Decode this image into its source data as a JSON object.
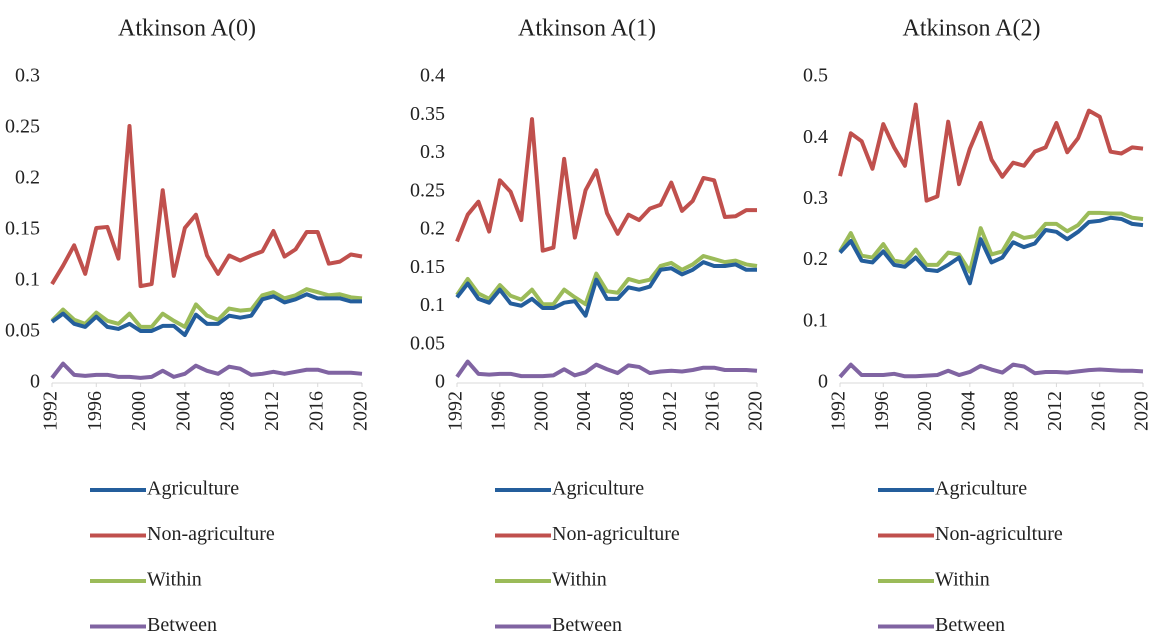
{
  "chart_data": [
    {
      "type": "line",
      "title": "Atkinson A(0)",
      "x": [
        1992,
        1993,
        1994,
        1995,
        1996,
        1997,
        1998,
        1999,
        2000,
        2001,
        2002,
        2003,
        2004,
        2005,
        2006,
        2007,
        2008,
        2009,
        2010,
        2011,
        2012,
        2013,
        2014,
        2015,
        2016,
        2017,
        2018,
        2019,
        2020
      ],
      "xlim": [
        1992,
        2020
      ],
      "xticks": [
        1992,
        1996,
        2000,
        2004,
        2008,
        2012,
        2016,
        2020
      ],
      "ylim": [
        0,
        0.3
      ],
      "yticks": [
        0,
        0.05,
        0.1,
        0.15,
        0.2,
        0.25,
        0.3
      ],
      "series": [
        {
          "name": "Agriculture",
          "color": "#245e9c",
          "values": [
            0.06,
            0.068,
            0.058,
            0.055,
            0.065,
            0.055,
            0.053,
            0.058,
            0.051,
            0.051,
            0.056,
            0.056,
            0.047,
            0.067,
            0.058,
            0.058,
            0.066,
            0.064,
            0.066,
            0.082,
            0.085,
            0.079,
            0.082,
            0.087,
            0.083,
            0.083,
            0.083,
            0.08,
            0.08
          ]
        },
        {
          "name": "Non-agriculture",
          "color": "#c0504d",
          "values": [
            0.097,
            0.115,
            0.135,
            0.107,
            0.152,
            0.153,
            0.122,
            0.252,
            0.095,
            0.097,
            0.189,
            0.105,
            0.152,
            0.165,
            0.125,
            0.107,
            0.125,
            0.12,
            0.125,
            0.129,
            0.149,
            0.124,
            0.131,
            0.148,
            0.148,
            0.117,
            0.119,
            0.126,
            0.124
          ]
        },
        {
          "name": "Within",
          "color": "#9bbb59",
          "values": [
            0.061,
            0.072,
            0.062,
            0.058,
            0.069,
            0.061,
            0.058,
            0.068,
            0.055,
            0.055,
            0.068,
            0.061,
            0.055,
            0.077,
            0.066,
            0.062,
            0.073,
            0.071,
            0.072,
            0.086,
            0.089,
            0.083,
            0.086,
            0.092,
            0.089,
            0.086,
            0.087,
            0.084,
            0.083
          ]
        },
        {
          "name": "Between",
          "color": "#8064a2",
          "values": [
            0.005,
            0.019,
            0.008,
            0.007,
            0.008,
            0.008,
            0.006,
            0.006,
            0.005,
            0.006,
            0.012,
            0.006,
            0.009,
            0.017,
            0.012,
            0.009,
            0.016,
            0.014,
            0.008,
            0.009,
            0.011,
            0.009,
            0.011,
            0.013,
            0.013,
            0.01,
            0.01,
            0.01,
            0.009
          ]
        }
      ]
    },
    {
      "type": "line",
      "title": "Atkinson A(1)",
      "x": [
        1992,
        1993,
        1994,
        1995,
        1996,
        1997,
        1998,
        1999,
        2000,
        2001,
        2002,
        2003,
        2004,
        2005,
        2006,
        2007,
        2008,
        2009,
        2010,
        2011,
        2012,
        2013,
        2014,
        2015,
        2016,
        2017,
        2018,
        2019,
        2020
      ],
      "xlim": [
        1992,
        2020
      ],
      "xticks": [
        1992,
        1996,
        2000,
        2004,
        2008,
        2012,
        2016,
        2020
      ],
      "ylim": [
        0,
        0.4
      ],
      "yticks": [
        0,
        0.05,
        0.1,
        0.15,
        0.2,
        0.25,
        0.3,
        0.35,
        0.4
      ],
      "series": [
        {
          "name": "Agriculture",
          "color": "#245e9c",
          "values": [
            0.112,
            0.13,
            0.11,
            0.105,
            0.122,
            0.104,
            0.101,
            0.11,
            0.098,
            0.098,
            0.105,
            0.107,
            0.088,
            0.135,
            0.11,
            0.11,
            0.125,
            0.122,
            0.126,
            0.148,
            0.15,
            0.142,
            0.148,
            0.158,
            0.153,
            0.153,
            0.155,
            0.148,
            0.148
          ]
        },
        {
          "name": "Non-agriculture",
          "color": "#c0504d",
          "values": [
            0.185,
            0.22,
            0.237,
            0.198,
            0.265,
            0.25,
            0.213,
            0.345,
            0.173,
            0.177,
            0.293,
            0.19,
            0.252,
            0.278,
            0.222,
            0.195,
            0.22,
            0.213,
            0.228,
            0.233,
            0.262,
            0.225,
            0.238,
            0.268,
            0.265,
            0.217,
            0.218,
            0.226,
            0.226
          ]
        },
        {
          "name": "Within",
          "color": "#9bbb59",
          "values": [
            0.115,
            0.136,
            0.117,
            0.11,
            0.128,
            0.114,
            0.109,
            0.122,
            0.103,
            0.103,
            0.122,
            0.112,
            0.103,
            0.143,
            0.12,
            0.118,
            0.136,
            0.132,
            0.135,
            0.153,
            0.157,
            0.148,
            0.155,
            0.166,
            0.162,
            0.158,
            0.16,
            0.155,
            0.153
          ]
        },
        {
          "name": "Between",
          "color": "#8064a2",
          "values": [
            0.008,
            0.028,
            0.012,
            0.011,
            0.012,
            0.012,
            0.009,
            0.009,
            0.009,
            0.01,
            0.018,
            0.01,
            0.014,
            0.024,
            0.018,
            0.013,
            0.023,
            0.021,
            0.013,
            0.015,
            0.016,
            0.015,
            0.017,
            0.02,
            0.02,
            0.017,
            0.017,
            0.017,
            0.016
          ]
        }
      ]
    },
    {
      "type": "line",
      "title": "Atkinson A(2)",
      "x": [
        1992,
        1993,
        1994,
        1995,
        1996,
        1997,
        1998,
        1999,
        2000,
        2001,
        2002,
        2003,
        2004,
        2005,
        2006,
        2007,
        2008,
        2009,
        2010,
        2011,
        2012,
        2013,
        2014,
        2015,
        2016,
        2017,
        2018,
        2019,
        2020
      ],
      "xlim": [
        1992,
        2020
      ],
      "xticks": [
        1992,
        1996,
        2000,
        2004,
        2008,
        2012,
        2016,
        2020
      ],
      "ylim": [
        0,
        0.5
      ],
      "yticks": [
        0,
        0.1,
        0.2,
        0.3,
        0.4,
        0.5
      ],
      "series": [
        {
          "name": "Agriculture",
          "color": "#245e9c",
          "values": [
            0.213,
            0.232,
            0.2,
            0.197,
            0.215,
            0.193,
            0.19,
            0.205,
            0.185,
            0.183,
            0.193,
            0.205,
            0.163,
            0.235,
            0.197,
            0.205,
            0.23,
            0.222,
            0.228,
            0.25,
            0.247,
            0.235,
            0.247,
            0.263,
            0.265,
            0.27,
            0.268,
            0.26,
            0.258
          ]
        },
        {
          "name": "Non-agriculture",
          "color": "#c0504d",
          "values": [
            0.338,
            0.408,
            0.395,
            0.35,
            0.423,
            0.385,
            0.355,
            0.455,
            0.298,
            0.305,
            0.427,
            0.325,
            0.383,
            0.425,
            0.365,
            0.337,
            0.36,
            0.355,
            0.378,
            0.385,
            0.425,
            0.377,
            0.4,
            0.445,
            0.435,
            0.378,
            0.375,
            0.385,
            0.383
          ]
        },
        {
          "name": "Within",
          "color": "#9bbb59",
          "values": [
            0.215,
            0.245,
            0.208,
            0.205,
            0.227,
            0.2,
            0.197,
            0.218,
            0.193,
            0.193,
            0.213,
            0.21,
            0.182,
            0.253,
            0.21,
            0.215,
            0.245,
            0.237,
            0.24,
            0.26,
            0.26,
            0.248,
            0.258,
            0.278,
            0.278,
            0.277,
            0.277,
            0.27,
            0.268
          ]
        },
        {
          "name": "Between",
          "color": "#8064a2",
          "values": [
            0.01,
            0.03,
            0.013,
            0.013,
            0.013,
            0.015,
            0.011,
            0.011,
            0.012,
            0.013,
            0.02,
            0.013,
            0.018,
            0.028,
            0.022,
            0.017,
            0.03,
            0.027,
            0.016,
            0.018,
            0.018,
            0.017,
            0.019,
            0.021,
            0.022,
            0.021,
            0.02,
            0.02,
            0.019
          ]
        }
      ]
    }
  ]
}
